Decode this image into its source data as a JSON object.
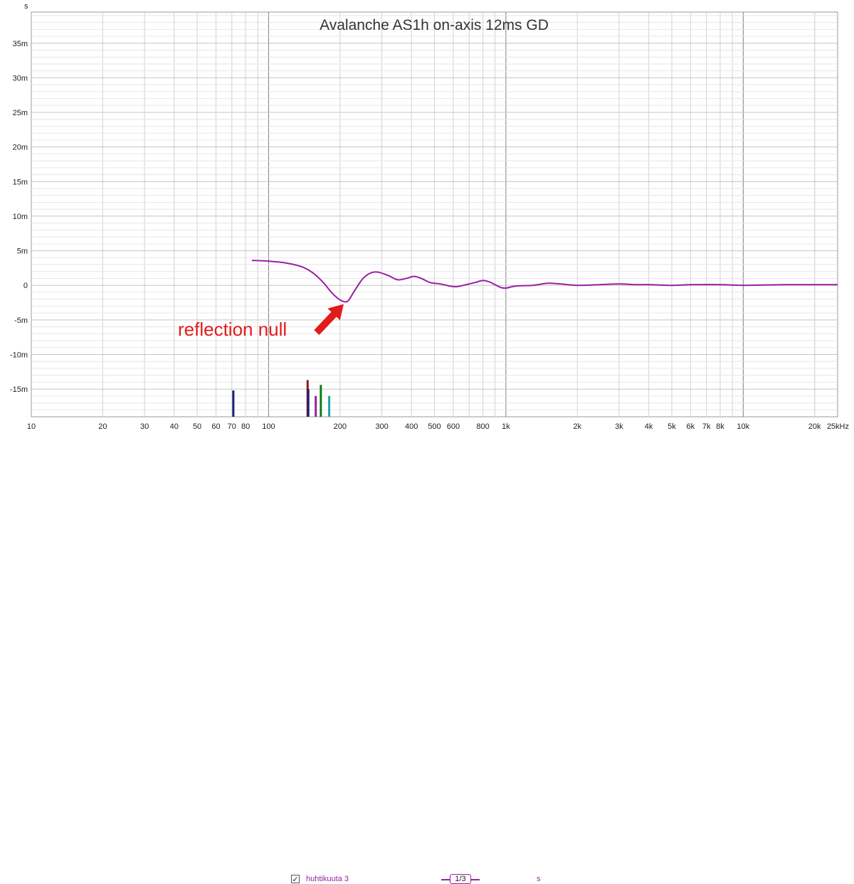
{
  "chart_data": {
    "type": "line",
    "title": "Avalanche AS1h on-axis 12ms GD",
    "ylabel": "s",
    "x_scale": "log",
    "xlim": [
      10,
      25000
    ],
    "ylim": [
      -0.019,
      0.0395
    ],
    "x_ticks": [
      {
        "v": 10,
        "label": "10"
      },
      {
        "v": 20,
        "label": "20"
      },
      {
        "v": 30,
        "label": "30"
      },
      {
        "v": 40,
        "label": "40"
      },
      {
        "v": 50,
        "label": "50"
      },
      {
        "v": 60,
        "label": "60"
      },
      {
        "v": 70,
        "label": "70"
      },
      {
        "v": 80,
        "label": "80"
      },
      {
        "v": 100,
        "label": "100"
      },
      {
        "v": 200,
        "label": "200"
      },
      {
        "v": 300,
        "label": "300"
      },
      {
        "v": 400,
        "label": "400"
      },
      {
        "v": 500,
        "label": "500"
      },
      {
        "v": 600,
        "label": "600"
      },
      {
        "v": 800,
        "label": "800"
      },
      {
        "v": 1000,
        "label": "1k"
      },
      {
        "v": 2000,
        "label": "2k"
      },
      {
        "v": 3000,
        "label": "3k"
      },
      {
        "v": 4000,
        "label": "4k"
      },
      {
        "v": 5000,
        "label": "5k"
      },
      {
        "v": 6000,
        "label": "6k"
      },
      {
        "v": 7000,
        "label": "7k"
      },
      {
        "v": 8000,
        "label": "8k"
      },
      {
        "v": 10000,
        "label": "10k"
      },
      {
        "v": 20000,
        "label": "20k"
      },
      {
        "v": 25000,
        "label": "25kHz"
      }
    ],
    "y_ticks": [
      {
        "v": 0.035,
        "label": "35m"
      },
      {
        "v": 0.03,
        "label": "30m"
      },
      {
        "v": 0.025,
        "label": "25m"
      },
      {
        "v": 0.02,
        "label": "20m"
      },
      {
        "v": 0.015,
        "label": "15m"
      },
      {
        "v": 0.01,
        "label": "10m"
      },
      {
        "v": 0.005,
        "label": "5m"
      },
      {
        "v": 0,
        "label": "0"
      },
      {
        "v": -0.005,
        "label": "-5m"
      },
      {
        "v": -0.01,
        "label": "-10m"
      },
      {
        "v": -0.015,
        "label": "-15m"
      }
    ],
    "grid": true,
    "series": [
      {
        "name": "huhtikuuta 3",
        "color": "#9b1fa3",
        "points": [
          [
            85,
            0.0036
          ],
          [
            100,
            0.0035
          ],
          [
            120,
            0.0032
          ],
          [
            140,
            0.0026
          ],
          [
            155,
            0.0017
          ],
          [
            170,
            0.0004
          ],
          [
            185,
            -0.0011
          ],
          [
            200,
            -0.0021
          ],
          [
            215,
            -0.0023
          ],
          [
            230,
            -0.0008
          ],
          [
            250,
            0.001
          ],
          [
            270,
            0.0018
          ],
          [
            290,
            0.0019
          ],
          [
            320,
            0.0014
          ],
          [
            350,
            0.0008
          ],
          [
            380,
            0.001
          ],
          [
            410,
            0.0013
          ],
          [
            440,
            0.001
          ],
          [
            480,
            0.0004
          ],
          [
            530,
            0.0002
          ],
          [
            580,
            -0.0001
          ],
          [
            620,
            -0.0002
          ],
          [
            680,
            0.0001
          ],
          [
            740,
            0.0004
          ],
          [
            800,
            0.0007
          ],
          [
            850,
            0.0005
          ],
          [
            900,
            0.0001
          ],
          [
            950,
            -0.0003
          ],
          [
            1000,
            -0.0004
          ],
          [
            1100,
            -0.0001
          ],
          [
            1300,
            0.0
          ],
          [
            1500,
            0.0003
          ],
          [
            1700,
            0.0002
          ],
          [
            2000,
            0.0
          ],
          [
            2500,
            0.0001
          ],
          [
            3000,
            0.0002
          ],
          [
            3500,
            0.0001
          ],
          [
            4000,
            0.0001
          ],
          [
            5000,
            0.0
          ],
          [
            6000,
            0.0001
          ],
          [
            8000,
            0.0001
          ],
          [
            10000,
            0.0
          ],
          [
            15000,
            0.0001
          ],
          [
            20000,
            0.0001
          ],
          [
            25000,
            0.0001
          ]
        ]
      }
    ],
    "markers": [
      {
        "freq": 71,
        "height": 0.0038,
        "color": "#1a1f7a"
      },
      {
        "freq": 146,
        "height": 0.0053,
        "color": "#8b1a1a"
      },
      {
        "freq": 147,
        "height": 0.004,
        "color": "#1a1f7a"
      },
      {
        "freq": 158,
        "height": 0.003,
        "color": "#9b1fa3"
      },
      {
        "freq": 166,
        "height": 0.0046,
        "color": "#0f7a1a"
      },
      {
        "freq": 180,
        "height": 0.003,
        "color": "#1aa8a8"
      }
    ],
    "annotations": [
      {
        "text": "reflection null",
        "color": "#e21b1b",
        "target_freq": 210,
        "target_value": -0.0023
      }
    ]
  },
  "legend": {
    "checkbox": "✓",
    "series_name": "huhtikuuta 3",
    "smoothing": "1/3",
    "unit": "s"
  }
}
